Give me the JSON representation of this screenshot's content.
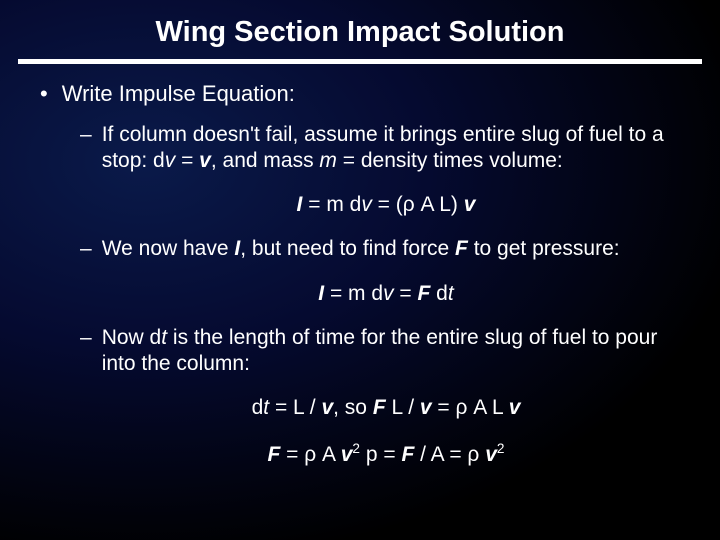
{
  "title": "Wing Section Impact Solution",
  "colors": {
    "text": "#ffffff",
    "bg_gradient_inner": "#0a1a4a",
    "bg_gradient_mid": "#050a30",
    "bg_gradient_outer": "#000000",
    "underline": "#ffffff"
  },
  "typography": {
    "title_size": 29,
    "body_size": 22,
    "sub_size": 21,
    "eq_size": 21,
    "family": "Arial"
  },
  "main_bullet": "Write Impulse Equation:",
  "sub1_a": "If column doesn't fail, assume it brings entire slug of fuel to a stop:  d",
  "sub1_b": " = ",
  "sub1_c": ", and mass ",
  "sub1_d": " = density times volume:",
  "v": "v",
  "m": "m",
  "eq1_a": " = m d",
  "eq1_b": " = (ρ A L) ",
  "I": "I",
  "sub2_a": "We now have ",
  "sub2_b": ", but need to find force ",
  "sub2_c": " to get pressure:",
  "F": "F",
  "eq2_a": " = m d",
  "eq2_b": " = ",
  "eq2_c": " d",
  "t": "t",
  "sub3_a": "Now d",
  "sub3_b": "  is the length of time for the entire slug of fuel to pour into the column:",
  "eq3_a": "d",
  "eq3_b": " = L / ",
  "eq3_c": ",   so   ",
  "eq3_d": " L / ",
  "eq3_e": " = ρ A L ",
  "eq4_a": " = ρ A ",
  "eq4_b": "      p  =  ",
  "eq4_c": " / A  = ρ ",
  "sq": "2"
}
